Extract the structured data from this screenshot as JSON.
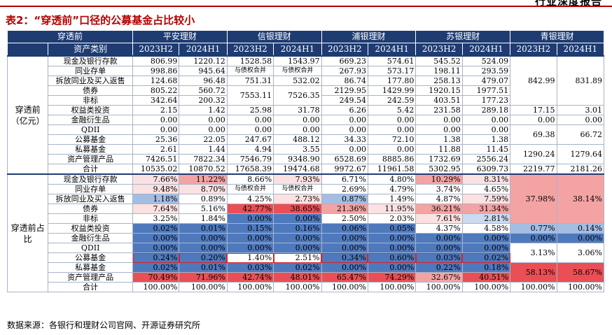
{
  "header_tag": "行业深度报告",
  "title": "表2：“穿透前”口径的公募基金占比较小",
  "source": "数据来源：各银行和理财公司官网、开源证券研究所",
  "colors": {
    "header_bg": "#1e3c72",
    "deep_blue": "#4f79bd",
    "mid_blue": "#a3bde3",
    "light_blue": "#cbdaf0",
    "light_pink": "#fbe1e1",
    "mid_red": "#f4a3a3",
    "deep_red": "#ea4f55",
    "highlight_border": "#e02020"
  },
  "header": {
    "row1": [
      "穿透前",
      "平安理财",
      "信银理财",
      "浦银理财",
      "苏银理财",
      "青银理财"
    ],
    "row2_label": "资产类别",
    "periods": [
      "2023H2",
      "2024H1",
      "2023H2",
      "2024H1",
      "2023H2",
      "2024H1",
      "2023H2",
      "2024H1",
      "2023H2",
      "2024H1"
    ]
  },
  "sections": {
    "before": "穿透前（亿元）",
    "share": "穿透前占比"
  },
  "categories": [
    "现金及银行存款",
    "同业存单",
    "拆放同业及买入返售",
    "债券",
    "非标",
    "权益类投资",
    "金融衍生品",
    "QDII",
    "公募基金",
    "私募基金",
    "资产管理产品",
    "合计"
  ],
  "amounts": {
    "pingan": [
      [
        "806.99",
        "1220.12"
      ],
      [
        "998.86",
        "945.64"
      ],
      [
        "124.68",
        "96.48"
      ],
      [
        "805.22",
        "560.72"
      ],
      [
        "342.64",
        "200.32"
      ],
      [
        "2.15",
        "1.42"
      ],
      [
        "0.00",
        "0.00"
      ],
      [
        "0.00",
        "0.00"
      ],
      [
        "25.36",
        "22.05"
      ],
      [
        "2.61",
        "1.44"
      ],
      [
        "7426.51",
        "7822.34"
      ],
      [
        "10535.02",
        "10870.52"
      ]
    ],
    "xinyin": {
      "r0": [
        "1528.58",
        "1543.97"
      ],
      "r1": [
        "与债权合并",
        "与债权合并"
      ],
      "r2": [
        "751.31",
        "532.02"
      ],
      "r34": [
        "7553.11",
        "7526.35"
      ],
      "r5": [
        "25.98",
        "31.78"
      ],
      "r6": [
        "0.00",
        "0.00"
      ],
      "r7": [
        "0.00",
        "0.00"
      ],
      "r8": [
        "247.67",
        "488.12"
      ],
      "r9": [
        "4.94",
        "3.55"
      ],
      "r10": [
        "7546.79",
        "9348.90"
      ],
      "r11": [
        "17658.39",
        "19474.68"
      ]
    },
    "puyin": [
      [
        "669.23",
        "574.61"
      ],
      [
        "267.93",
        "573.17"
      ],
      [
        "86.74",
        "177.80"
      ],
      [
        "2129.95",
        "1429.99"
      ],
      [
        "249.54",
        "242.59"
      ],
      [
        "6.26",
        "5.42"
      ],
      [
        "0.00",
        "0.00"
      ],
      [
        "0.00",
        "0.00"
      ],
      [
        "34.33",
        "72.10"
      ],
      [
        "0.00",
        "0.00"
      ],
      [
        "6528.69",
        "8885.86"
      ],
      [
        "9972.67",
        "11961.58"
      ]
    ],
    "suyin": [
      [
        "545.52",
        "524.09"
      ],
      [
        "198.11",
        "293.59"
      ],
      [
        "258.13",
        "479.07"
      ],
      [
        "1920.15",
        "1977.51"
      ],
      [
        "403.51",
        "177.23"
      ],
      [
        "231.58",
        "289.18"
      ],
      [
        "0.00",
        "0.00"
      ],
      [
        "0.00",
        "0.00"
      ],
      [
        "1.38",
        "1.38"
      ],
      [
        "11.88",
        "11.45"
      ],
      [
        "1732.69",
        "2556.24"
      ],
      [
        "5302.95",
        "6309.73"
      ]
    ],
    "qingyin": {
      "m0_4": [
        "842.99",
        "831.89"
      ],
      "r5": [
        "17.15",
        "3.01"
      ],
      "r6": [
        "0.00",
        "0.00"
      ],
      "m7_8": [
        "69.38",
        "66.72"
      ],
      "m9_10": [
        "1290.24",
        "1279.64"
      ],
      "r11": [
        "2219.77",
        "2181.26"
      ]
    }
  },
  "shares": {
    "pingan": [
      [
        "7.66%",
        "11.22%"
      ],
      [
        "9.48%",
        "8.70%"
      ],
      [
        "1.18%",
        "0.89%"
      ],
      [
        "7.64%",
        "5.16%"
      ],
      [
        "3.25%",
        "1.84%"
      ],
      [
        "0.02%",
        "0.01%"
      ],
      [
        "0.00%",
        "0.00%"
      ],
      [
        "0.00%",
        "0.00%"
      ],
      [
        "0.24%",
        "0.20%"
      ],
      [
        "0.02%",
        "0.01%"
      ],
      [
        "70.49%",
        "71.96%"
      ],
      [
        "100.00%",
        "100.00%"
      ]
    ],
    "xinyin": {
      "r0": [
        "8.66%",
        "7.93%"
      ],
      "r1": [
        "与债权合并",
        "与债权合并"
      ],
      "r2": [
        "4.25%",
        "2.73%"
      ],
      "r34": [
        "42.77%",
        "38.65%"
      ],
      "r4": [
        "0.00%",
        "0.00%"
      ],
      "r5": [
        "0.15%",
        "0.16%"
      ],
      "r6": [
        "0.00%",
        "0.00%"
      ],
      "r7": [
        "0.00%",
        "0.00%"
      ],
      "r8": [
        "1.40%",
        "2.51%"
      ],
      "r9": [
        "0.03%",
        "0.02%"
      ],
      "r10": [
        "42.74%",
        "48.01%"
      ],
      "r11": [
        "100.00%",
        "100.00%"
      ]
    },
    "puyin": [
      [
        "6.71%",
        "4.80%"
      ],
      [
        "2.69%",
        "4.79%"
      ],
      [
        "0.87%",
        "1.49%"
      ],
      [
        "21.36%",
        "11.95%"
      ],
      [
        "2.50%",
        "2.03%"
      ],
      [
        "0.06%",
        "0.05%"
      ],
      [
        "0.00%",
        "0.00%"
      ],
      [
        "0.00%",
        "0.00%"
      ],
      [
        "0.34%",
        "0.60%"
      ],
      [
        "0.00%",
        "0.00%"
      ],
      [
        "65.47%",
        "74.29%"
      ],
      [
        "100.00%",
        "100.00%"
      ]
    ],
    "suyin": [
      [
        "10.29%",
        "8.31%"
      ],
      [
        "3.74%",
        "4.65%"
      ],
      [
        "4.87%",
        "7.59%"
      ],
      [
        "36.21%",
        "31.34%"
      ],
      [
        "7.61%",
        "2.81%"
      ],
      [
        "4.37%",
        "4.58%"
      ],
      [
        "0.00%",
        "0.00%"
      ],
      [
        "0.00%",
        "0.00%"
      ],
      [
        "0.03%",
        "0.02%"
      ],
      [
        "0.22%",
        "0.18%"
      ],
      [
        "32.67%",
        "40.51%"
      ],
      [
        "100.00%",
        "100.00%"
      ]
    ],
    "qingyin": {
      "m0_4": [
        "37.98%",
        "38.14%"
      ],
      "r5": [
        "0.77%",
        "0.14%"
      ],
      "r6": [
        "0.00%",
        "0.00%"
      ],
      "m7_8": [
        "3.13%",
        "3.06%"
      ],
      "m9_10": [
        "58.13%",
        "58.67%"
      ],
      "r11": [
        "100.00%",
        "100.00%"
      ]
    }
  },
  "share_heat": {
    "pingan": [
      [
        "P1",
        "P2"
      ],
      [
        "P1",
        "P1"
      ],
      [
        "B2",
        "W"
      ],
      [
        "P1",
        "W"
      ],
      [
        "W",
        "W"
      ],
      [
        "B1",
        "B1"
      ],
      [
        "B1",
        "B1"
      ],
      [
        "B1",
        "B1"
      ],
      [
        "B1",
        "B1"
      ],
      [
        "B1",
        "B1"
      ],
      [
        "R2",
        "R2"
      ],
      [
        "W",
        "W"
      ]
    ],
    "puyin": [
      [
        "W",
        "W"
      ],
      [
        "W",
        "W"
      ],
      [
        "B2",
        "W"
      ],
      [
        "P2",
        "P1"
      ],
      [
        "W",
        "W"
      ],
      [
        "B1",
        "B1"
      ],
      [
        "B1",
        "B1"
      ],
      [
        "B1",
        "B1"
      ],
      [
        "B1",
        "B1"
      ],
      [
        "B1",
        "B1"
      ],
      [
        "R2",
        "R2"
      ],
      [
        "W",
        "W"
      ]
    ],
    "suyin": [
      [
        "P2",
        "P1"
      ],
      [
        "W",
        "W"
      ],
      [
        "W",
        "P1"
      ],
      [
        "R1",
        "R1"
      ],
      [
        "P1",
        "B3"
      ],
      [
        "W",
        "W"
      ],
      [
        "B1",
        "B1"
      ],
      [
        "B1",
        "B1"
      ],
      [
        "B1",
        "B1"
      ],
      [
        "B1",
        "B1"
      ],
      [
        "R1",
        "R2"
      ],
      [
        "W",
        "W"
      ]
    ]
  }
}
